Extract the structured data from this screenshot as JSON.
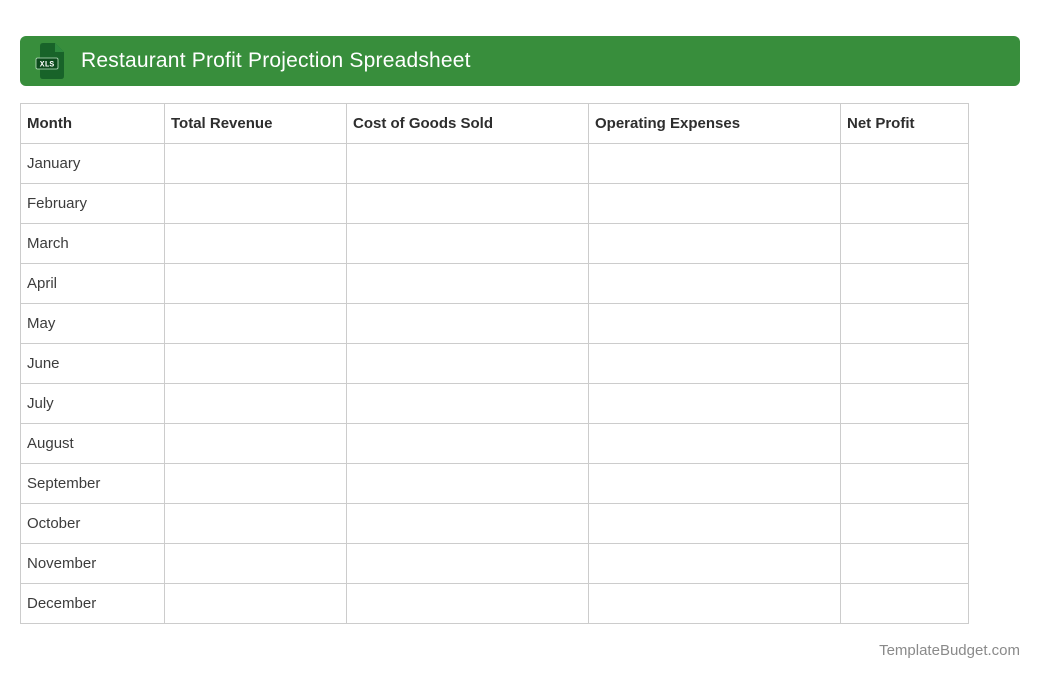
{
  "header": {
    "title": "Restaurant Profit Projection Spreadsheet",
    "icon_label": "XLS"
  },
  "colors": {
    "header_bg": "#388e3c",
    "table_border": "#cccccc",
    "cell_text": "#3c3c3c",
    "header_text": "#2e2e2e",
    "watermark_text": "#8a8a8a",
    "icon_doc": "#186329",
    "icon_fold": "#2f8a3f",
    "icon_badge": "#0c4a1c"
  },
  "table": {
    "columns": [
      "Month",
      "Total Revenue",
      "Cost of Goods Sold",
      "Operating Expenses",
      "Net Profit"
    ],
    "rows": [
      [
        "January",
        "",
        "",
        "",
        ""
      ],
      [
        "February",
        "",
        "",
        "",
        ""
      ],
      [
        "March",
        "",
        "",
        "",
        ""
      ],
      [
        "April",
        "",
        "",
        "",
        ""
      ],
      [
        "May",
        "",
        "",
        "",
        ""
      ],
      [
        "June",
        "",
        "",
        "",
        ""
      ],
      [
        "July",
        "",
        "",
        "",
        ""
      ],
      [
        "August",
        "",
        "",
        "",
        ""
      ],
      [
        "September",
        "",
        "",
        "",
        ""
      ],
      [
        "October",
        "",
        "",
        "",
        ""
      ],
      [
        "November",
        "",
        "",
        "",
        ""
      ],
      [
        "December",
        "",
        "",
        "",
        ""
      ]
    ]
  },
  "footer": {
    "watermark": "TemplateBudget.com"
  }
}
